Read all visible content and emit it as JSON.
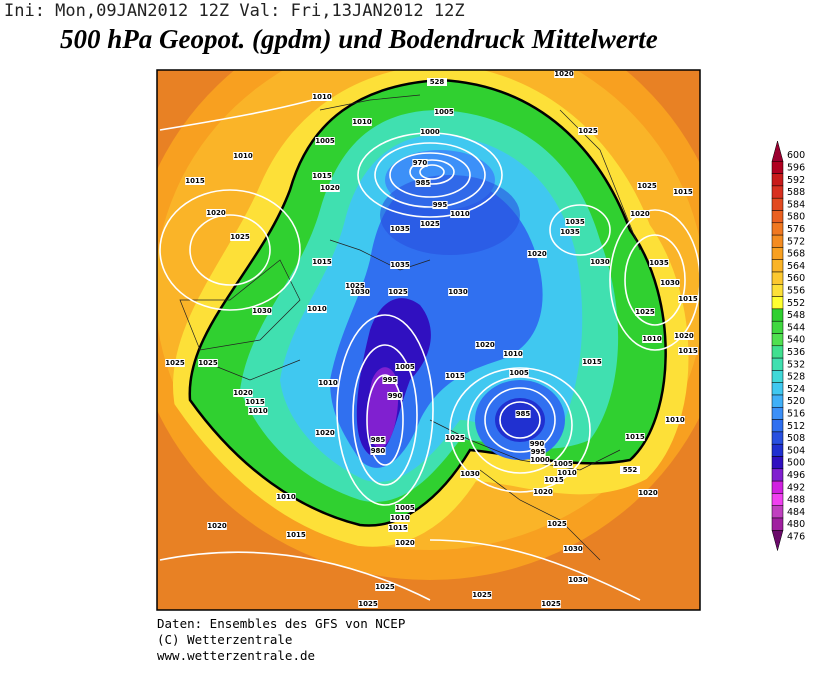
{
  "header": {
    "run_info": "Ini: Mon,09JAN2012  12Z Val: Fri,13JAN2012  12Z",
    "title": "500 hPa Geopot. (gpdm) und Bodendruck Mittelwerte"
  },
  "map": {
    "geopotential_labels": [
      "528",
      "552"
    ],
    "isobar_labels": [
      "1020",
      "1010",
      "1010",
      "1005",
      "1000",
      "1005",
      "1010",
      "970",
      "985",
      "995",
      "1010",
      "1015",
      "1020",
      "1015",
      "1020",
      "1025",
      "1025",
      "1025",
      "1015",
      "1020",
      "1035",
      "1035",
      "1030",
      "1035",
      "1030",
      "1015",
      "1025",
      "1020",
      "1010",
      "1015",
      "1035",
      "1025",
      "1015",
      "1035",
      "1025",
      "1030",
      "1025",
      "1030",
      "1020",
      "1030",
      "1010",
      "1025",
      "1025",
      "1010",
      "1005",
      "995",
      "990",
      "1015",
      "1020",
      "1010",
      "1015",
      "1005",
      "985",
      "990",
      "995",
      "1000",
      "1005",
      "1010",
      "1015",
      "1020",
      "1030",
      "1025",
      "985",
      "980",
      "1020",
      "1020",
      "1015",
      "1010",
      "1010",
      "1015",
      "1020",
      "1010",
      "1015",
      "1020",
      "1005",
      "1010",
      "1015",
      "1020",
      "1025",
      "1030",
      "1030",
      "1025",
      "1025",
      "1025",
      "1025"
    ]
  },
  "colorbar": {
    "levels": [
      600,
      596,
      592,
      588,
      584,
      580,
      576,
      572,
      568,
      564,
      560,
      556,
      552,
      548,
      544,
      540,
      536,
      532,
      528,
      524,
      520,
      516,
      512,
      508,
      504,
      500,
      496,
      492,
      488,
      484,
      480,
      476
    ],
    "colors": [
      "#9b0030",
      "#b00020",
      "#c81a1a",
      "#d83020",
      "#e24a20",
      "#ea6020",
      "#f07820",
      "#f48c20",
      "#f8a020",
      "#fab428",
      "#fcc830",
      "#fde038",
      "#ffff30",
      "#30d030",
      "#40d840",
      "#50e050",
      "#40e090",
      "#40e0b0",
      "#40d8d8",
      "#40c8f0",
      "#40b0f8",
      "#3c90f8",
      "#3070f0",
      "#2850e0",
      "#2030d0",
      "#3010c0",
      "#8020d0",
      "#d020e0",
      "#f040f0",
      "#c040c0",
      "#a020a0",
      "#6a0a6a"
    ]
  },
  "footer": {
    "lines": [
      "Daten: Ensembles des GFS von NCEP",
      "(C) Wetterzentrale",
      "www.wetterzentrale.de"
    ]
  }
}
